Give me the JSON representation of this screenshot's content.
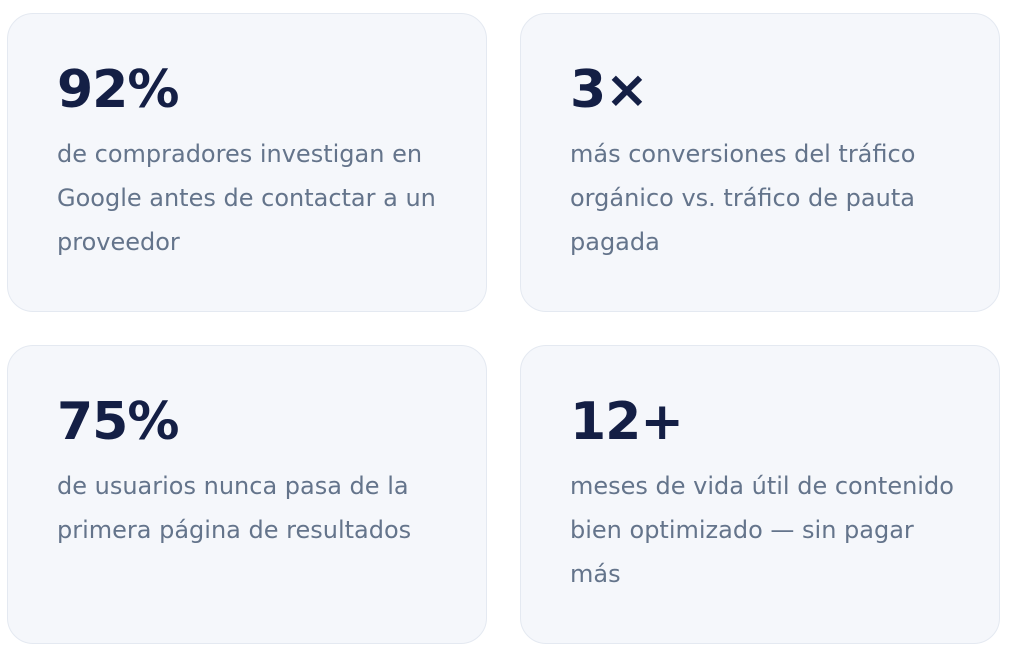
{
  "stats": [
    {
      "value": "92%",
      "description": "de compradores investigan en Google antes de contactar a un proveedor"
    },
    {
      "value": "3×",
      "description": "más conversiones del tráfico orgánico vs. tráfico de pauta pagada"
    },
    {
      "value": "75%",
      "description": "de usuarios nunca pasa de la primera página de resultados"
    },
    {
      "value": "12+",
      "description": "meses de vida útil de contenido bien optimizado — sin pagar más"
    }
  ],
  "colors": {
    "card_bg": "#f5f7fb",
    "number": "#141f45",
    "text": "#64748b",
    "border": "#e4e9f1"
  }
}
